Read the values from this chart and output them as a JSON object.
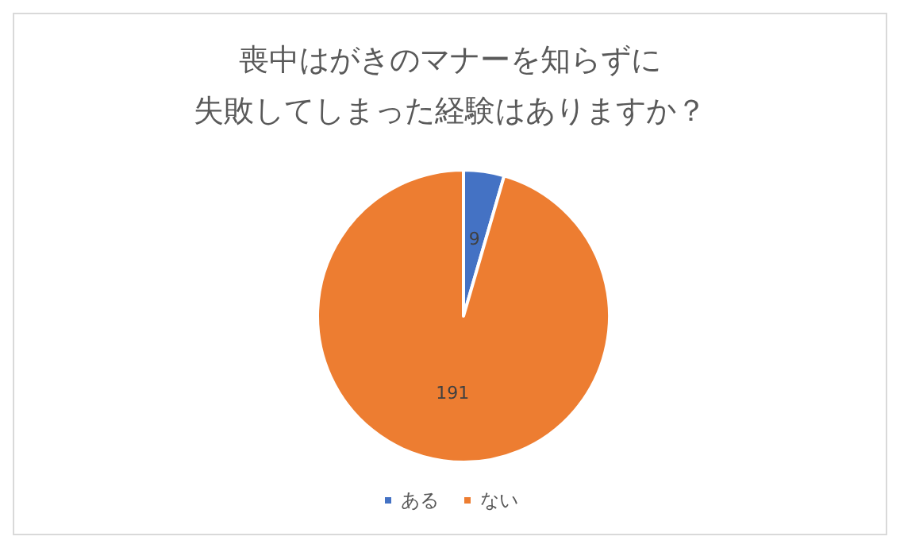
{
  "chart_data": {
    "type": "pie",
    "title": [
      "喪中はがきのマナーを知らずに",
      "失敗してしまった経験はありますか？"
    ],
    "categories": [
      "ある",
      "ない"
    ],
    "values": [
      9,
      191
    ],
    "colors": [
      "#4472c4",
      "#ed7d31"
    ],
    "data_labels": true,
    "legend": "bottom"
  }
}
